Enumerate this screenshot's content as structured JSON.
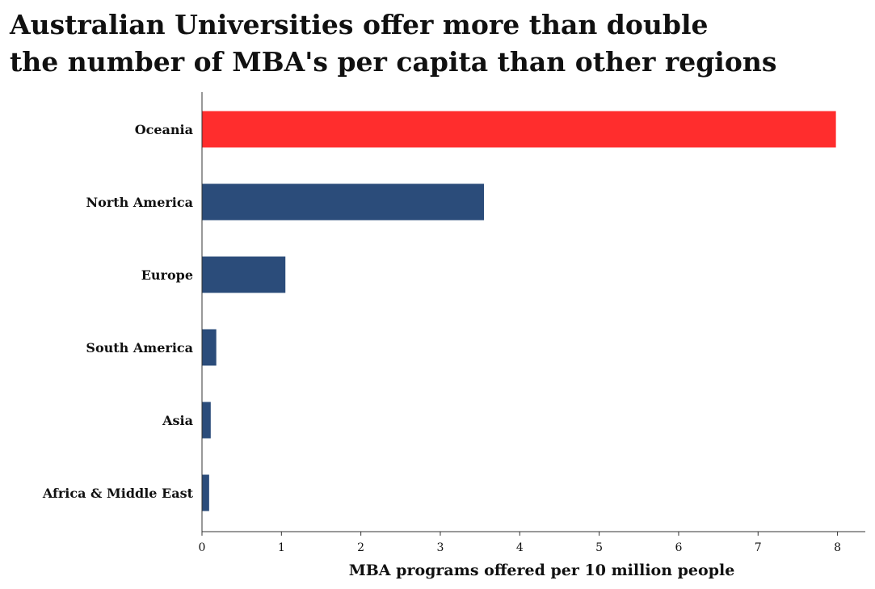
{
  "chart_data": {
    "type": "bar",
    "orientation": "horizontal",
    "title_lines": [
      "Australian Universities offer more than double",
      "the number of MBA's per capita than other regions"
    ],
    "categories": [
      "Oceania",
      "North America",
      "Europe",
      "South America",
      "Asia",
      "Africa & Middle East"
    ],
    "values": [
      7.98,
      3.55,
      1.05,
      0.18,
      0.11,
      0.09
    ],
    "colors": [
      "#ff2d2d",
      "#2b4c7a",
      "#2b4c7a",
      "#2b4c7a",
      "#2b4c7a",
      "#2b4c7a"
    ],
    "xlabel": "MBA programs offered per 10 million people",
    "ylabel": "",
    "xlim": [
      0,
      8.35
    ],
    "xticks": [
      0,
      1,
      2,
      3,
      4,
      5,
      6,
      7,
      8
    ],
    "grid": false,
    "legend": "none"
  }
}
